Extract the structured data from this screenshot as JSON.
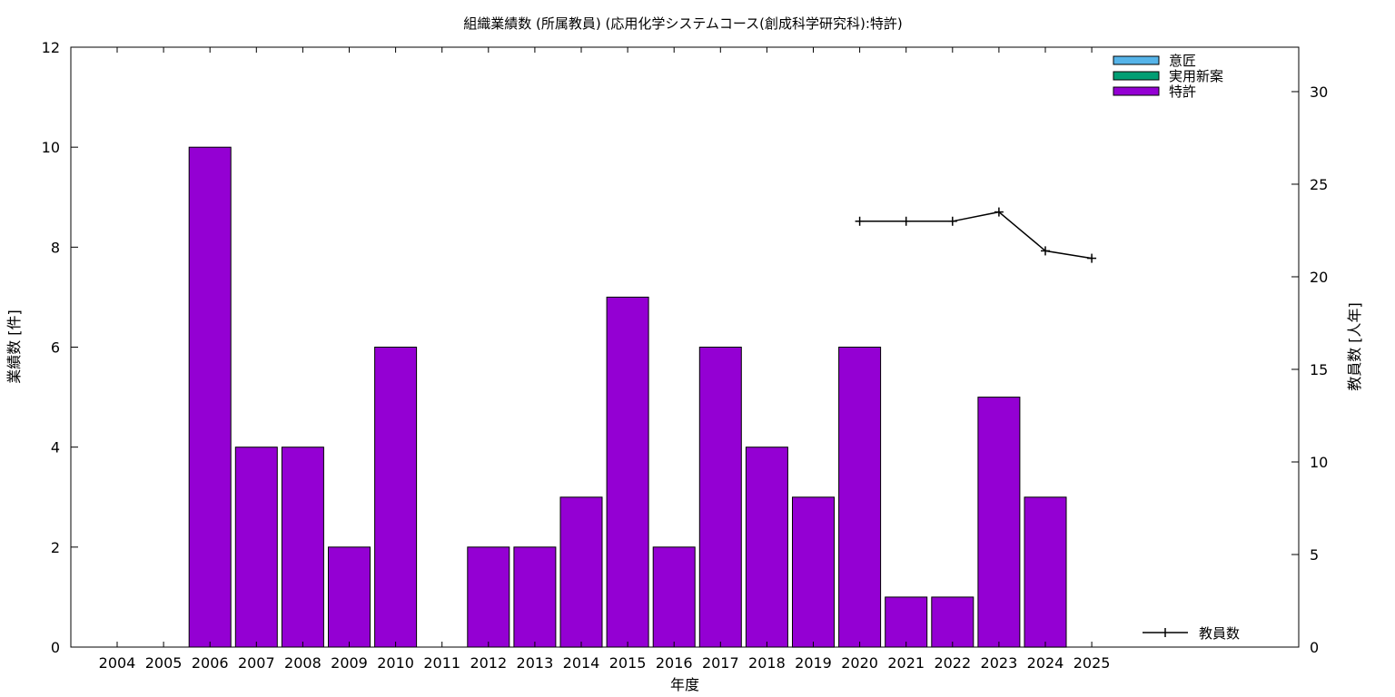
{
  "chart_data": {
    "type": "bar",
    "title": "組織業績数 (所属教員) (応用化学システムコース(創成科学研究科):特許)",
    "xlabel": "年度",
    "ylabel": "業績数 [件]",
    "y2label": "教員数 [人年]",
    "categories": [
      "2004",
      "2005",
      "2006",
      "2007",
      "2008",
      "2009",
      "2010",
      "2011",
      "2012",
      "2013",
      "2014",
      "2015",
      "2016",
      "2017",
      "2018",
      "2019",
      "2020",
      "2021",
      "2022",
      "2023",
      "2024",
      "2025"
    ],
    "ylim": [
      0,
      12
    ],
    "yticks": [
      0,
      2,
      4,
      6,
      8,
      10,
      12
    ],
    "y2lim": [
      0,
      32.4
    ],
    "y2ticks": [
      0,
      5,
      10,
      15,
      20,
      25,
      30
    ],
    "series": [
      {
        "name": "意匠",
        "color": "#56b4e9",
        "values": [
          0,
          0,
          0,
          0,
          0,
          0,
          0,
          0,
          0,
          0,
          0,
          0,
          0,
          0,
          0,
          0,
          0,
          0,
          0,
          0,
          0,
          0
        ]
      },
      {
        "name": "実用新案",
        "color": "#009e73",
        "values": [
          0,
          0,
          0,
          0,
          0,
          0,
          0,
          0,
          0,
          0,
          0,
          0,
          0,
          0,
          0,
          0,
          0,
          0,
          0,
          0,
          0,
          0
        ]
      },
      {
        "name": "特許",
        "color": "#9400d3",
        "values": [
          0,
          0,
          10,
          4,
          4,
          2,
          6,
          0,
          2,
          2,
          3,
          7,
          2,
          6,
          4,
          3,
          6,
          1,
          1,
          5,
          3,
          0
        ]
      }
    ],
    "line_series": {
      "name": "教員数",
      "color": "#000000",
      "axis": "y2",
      "x": [
        "2020",
        "2021",
        "2022",
        "2023",
        "2024",
        "2025"
      ],
      "values": [
        23.0,
        23.0,
        23.0,
        23.5,
        21.4,
        21.0
      ]
    },
    "legend_position": "top-right",
    "line_legend_position": "bottom-right",
    "grid": false
  }
}
